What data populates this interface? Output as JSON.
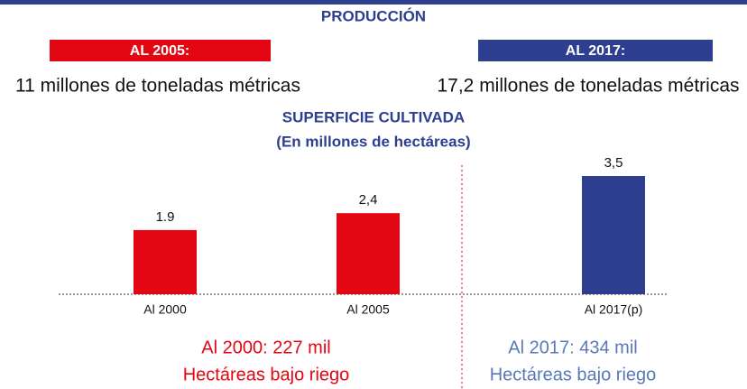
{
  "header": {
    "title": "PRODUCCIÓN",
    "left": {
      "label": "AL 2005:",
      "text": "11 millones de toneladas métricas"
    },
    "right": {
      "label": "AL 2017:",
      "text": "17,2 millones de toneladas métricas"
    }
  },
  "chart_data": {
    "type": "bar",
    "title": "SUPERFICIE CULTIVADA",
    "subtitle": "(En millones de hectáreas)",
    "categories": [
      "Al 2000",
      "Al 2005",
      "Al 2017(p)"
    ],
    "values": [
      1.9,
      2.4,
      3.5
    ],
    "value_labels": [
      "1.9",
      "2,4",
      "3,5"
    ],
    "colors": [
      "#e30613",
      "#e30613",
      "#2e3f8f"
    ],
    "ylim": [
      0,
      3.5
    ]
  },
  "notes": [
    {
      "line1": "Al 2000: 227 mil",
      "line2": "Hectáreas bajo riego"
    },
    {
      "line1": "Al 2017: 434 mil",
      "line2": "Hectáreas bajo riego"
    }
  ]
}
